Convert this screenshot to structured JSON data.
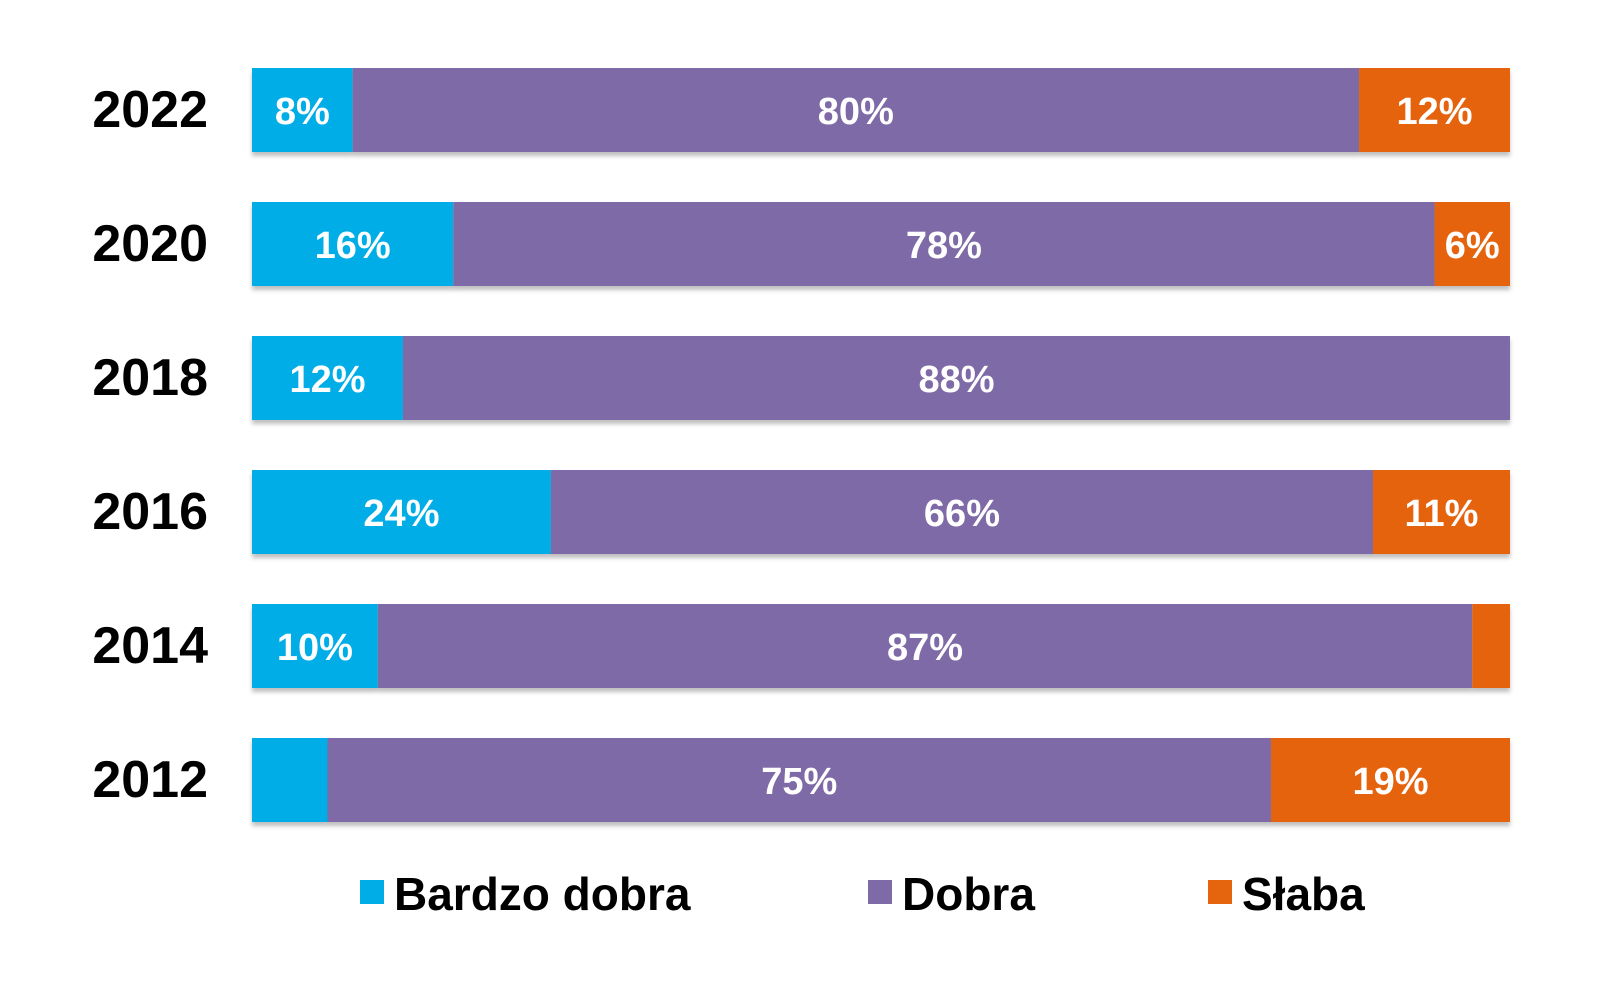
{
  "chart_data": {
    "type": "bar",
    "orientation": "horizontal",
    "stacked": true,
    "categories": [
      "2022",
      "2020",
      "2018",
      "2016",
      "2014",
      "2012"
    ],
    "series": [
      {
        "name": "Bardzo dobra",
        "color": "#00ADE6",
        "values": [
          8,
          16,
          12,
          24,
          10,
          6
        ],
        "labels": [
          "8%",
          "16%",
          "12%",
          "24%",
          "10%",
          ""
        ]
      },
      {
        "name": "Dobra",
        "color": "#7E6AA6",
        "values": [
          80,
          78,
          88,
          66,
          87,
          75
        ],
        "labels": [
          "80%",
          "78%",
          "88%",
          "66%",
          "87%",
          "75%"
        ]
      },
      {
        "name": "Słaba",
        "color": "#E5640E",
        "values": [
          12,
          6,
          0,
          11,
          3,
          19
        ],
        "labels": [
          "12%",
          "6%",
          "",
          "11%",
          "",
          "19%"
        ]
      }
    ],
    "xlim": [
      0,
      100
    ],
    "grid": false,
    "legend": "bottom",
    "title": "",
    "xlabel": "",
    "ylabel": ""
  }
}
